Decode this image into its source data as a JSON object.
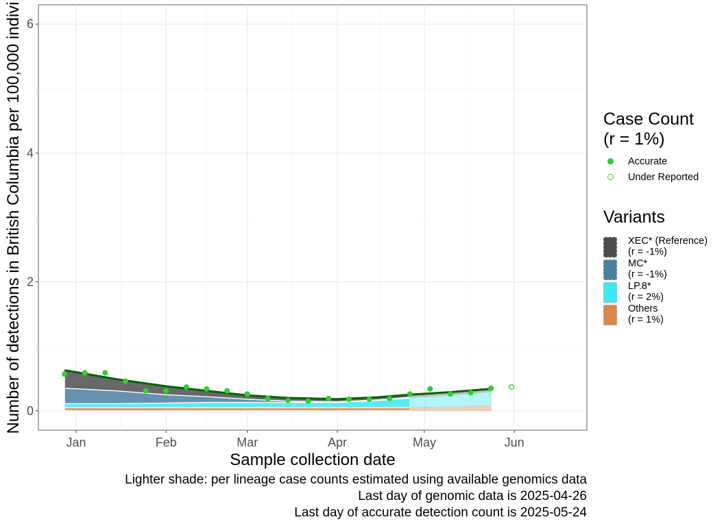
{
  "chart_data": {
    "type": "area",
    "ylabel": "Number of detections in British Columbia per 100,000 indivi",
    "xlabel": "Sample collection date",
    "ylim": [
      -0.3,
      6.3
    ],
    "y_ticks": [
      "0",
      "2",
      "4",
      "6"
    ],
    "x_ticks": [
      "Jan",
      "Feb",
      "Mar",
      "Apr",
      "May",
      "Jun"
    ],
    "x_tick_dates": [
      "2025-01-01",
      "2025-02-01",
      "2025-03-01",
      "2025-04-01",
      "2025-05-01",
      "2025-06-01"
    ],
    "xlim": [
      "2024-12-19",
      "2025-06-26"
    ],
    "grid": true,
    "genomic_cutoff": "2025-04-26",
    "series_dates": [
      "2024-12-28",
      "2025-01-15",
      "2025-02-01",
      "2025-02-15",
      "2025-03-01",
      "2025-03-15",
      "2025-04-01",
      "2025-04-15",
      "2025-04-26",
      "2025-05-10",
      "2025-05-24"
    ],
    "series": [
      {
        "name": "Others",
        "color": "#d9874a",
        "values": [
          0.05,
          0.05,
          0.05,
          0.05,
          0.05,
          0.05,
          0.05,
          0.05,
          0.05,
          0.06,
          0.08
        ]
      },
      {
        "name": "LP.8*",
        "color": "#3ee7f5",
        "values": [
          0.06,
          0.06,
          0.07,
          0.08,
          0.08,
          0.08,
          0.08,
          0.11,
          0.15,
          0.18,
          0.21
        ]
      },
      {
        "name": "MC*",
        "color": "#4c7f9f",
        "values": [
          0.24,
          0.2,
          0.13,
          0.09,
          0.05,
          0.02,
          0.01,
          0.01,
          0.01,
          0.01,
          0.01
        ]
      },
      {
        "name": "XEC* (Reference)",
        "color": "#4d4d4d",
        "values": [
          0.28,
          0.18,
          0.13,
          0.09,
          0.06,
          0.05,
          0.04,
          0.04,
          0.04,
          0.04,
          0.04
        ]
      }
    ],
    "fit_line": {
      "color": "#006400",
      "values": [
        0.63,
        0.49,
        0.38,
        0.31,
        0.24,
        0.2,
        0.18,
        0.21,
        0.25,
        0.29,
        0.34
      ]
    },
    "case_counts": {
      "accurate_dates": [
        "2024-12-28",
        "2025-01-04",
        "2025-01-11",
        "2025-01-18",
        "2025-01-25",
        "2025-02-01",
        "2025-02-08",
        "2025-02-15",
        "2025-02-22",
        "2025-03-01",
        "2025-03-08",
        "2025-03-15",
        "2025-03-22",
        "2025-03-29",
        "2025-04-05",
        "2025-04-12",
        "2025-04-19",
        "2025-04-26",
        "2025-05-03",
        "2025-05-10",
        "2025-05-17",
        "2025-05-24"
      ],
      "accurate_values": [
        0.57,
        0.59,
        0.59,
        0.46,
        0.31,
        0.31,
        0.37,
        0.34,
        0.31,
        0.26,
        0.19,
        0.16,
        0.15,
        0.19,
        0.18,
        0.18,
        0.19,
        0.26,
        0.34,
        0.26,
        0.28,
        0.35
      ],
      "under_reported_dates": [
        "2025-05-31"
      ],
      "under_reported_values": [
        0.37
      ],
      "accurate_color": "#32cd32"
    }
  },
  "legend": {
    "case_title": "Case Count\n(r = 1%)",
    "case_items": [
      {
        "label": "Accurate",
        "style": "filled"
      },
      {
        "label": "Under Reported",
        "style": "hollow"
      }
    ],
    "variants_title": "Variants",
    "variant_items": [
      {
        "label": "XEC* (Reference)",
        "rate": "(r = -1%)",
        "color": "#4d4d4d"
      },
      {
        "label": "MC*",
        "rate": "(r = -1%)",
        "color": "#4c7f9f"
      },
      {
        "label": "LP.8*",
        "rate": "(r = 2%)",
        "color": "#3ee7f5"
      },
      {
        "label": "Others",
        "rate": "(r = 1%)",
        "color": "#d9874a"
      }
    ]
  },
  "caption": {
    "line1": "Lighter shade: per lineage case counts estimated using available genomics data",
    "line2": "Last day of genomic data is 2025-04-26",
    "line3": "Last day of accurate detection count is 2025-05-24"
  }
}
